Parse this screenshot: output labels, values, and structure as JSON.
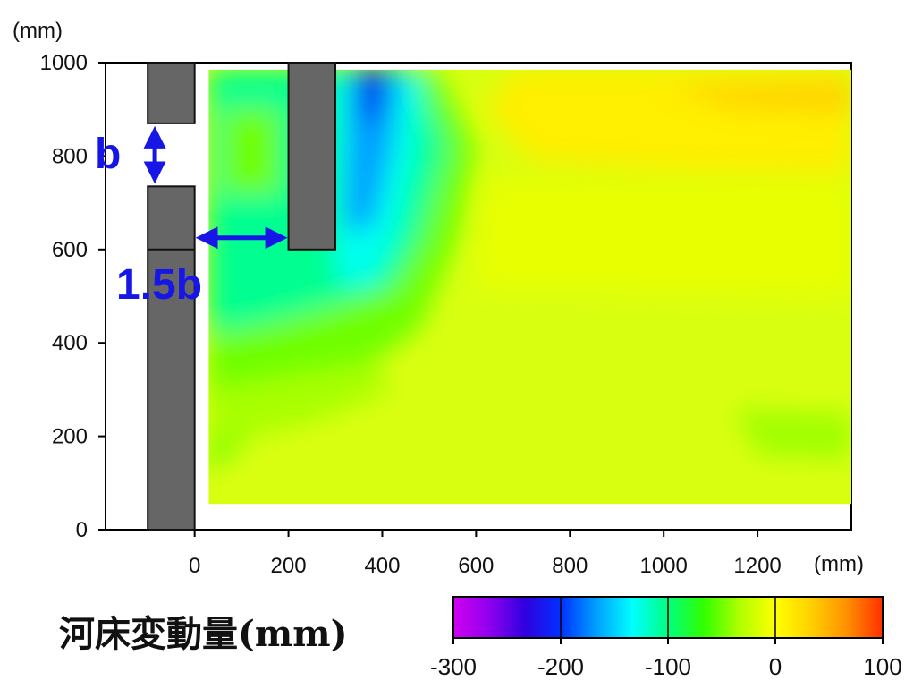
{
  "chart_data": {
    "type": "heatmap",
    "title": "",
    "xlabel": "",
    "ylabel": "",
    "x_unit": "(mm)",
    "y_unit": "(mm)",
    "xlim": [
      -190,
      1400
    ],
    "ylim": [
      0,
      1000
    ],
    "x_ticks": [
      0,
      200,
      400,
      600,
      800,
      1000,
      1200
    ],
    "y_ticks": [
      0,
      200,
      400,
      600,
      800,
      1000
    ],
    "field_extent": {
      "x": [
        30,
        1400
      ],
      "y": [
        55,
        985
      ]
    },
    "field_description_values": {
      "upstream_scour_min": -180,
      "downstream_bank_deposit_max": 75,
      "far_field_typical": 15
    },
    "obstacles": [
      {
        "name": "left-wall-upper",
        "x": [
          -100,
          0
        ],
        "y": [
          870,
          1000
        ]
      },
      {
        "name": "left-wall-lower",
        "x": [
          -100,
          0
        ],
        "y": [
          0,
          735
        ]
      },
      {
        "name": "spur-dike",
        "x": [
          200,
          300
        ],
        "y": [
          600,
          1000
        ]
      }
    ],
    "annotations": [
      {
        "text": "b",
        "arrow": "vertical",
        "x": -85,
        "y": [
          735,
          870
        ]
      },
      {
        "text": "1.5b",
        "arrow": "horizontal",
        "x": [
          0,
          200
        ],
        "y": 625
      }
    ],
    "colorbar": {
      "label": "河床変動量(mm)",
      "range": [
        -300,
        100
      ],
      "ticks": [
        -300,
        -200,
        -100,
        0,
        100
      ],
      "colors": [
        "#d000f0",
        "#9000f0",
        "#3000e0",
        "#0030ff",
        "#00a0ff",
        "#00ffff",
        "#00ff80",
        "#30ff00",
        "#b0ff00",
        "#ffff00",
        "#ffd000",
        "#ff9000",
        "#ff3000"
      ]
    }
  }
}
